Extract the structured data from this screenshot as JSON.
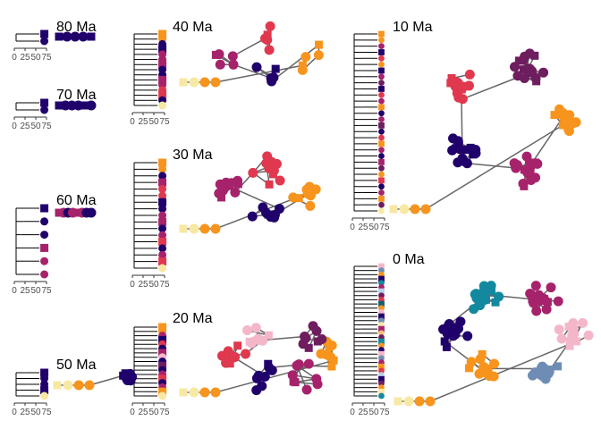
{
  "colors": {
    "dark_purple": "#20006b",
    "magenta": "#a6236b",
    "red": "#e0384e",
    "orange": "#f7941d",
    "light_orange": "#fbbf7a",
    "cream": "#f7e8a3",
    "plum": "#6e1d5f",
    "pink": "#f4b7c9",
    "steel": "#6f8db4",
    "light_blue": "#b9cfe8",
    "teal": "#13899f",
    "dark_teal": "#0f5f6e",
    "edge": "#666666",
    "tree": "#000000"
  },
  "chart_data": {
    "type": "network",
    "xtick_labels": [
      "0",
      "25",
      "50",
      "75"
    ],
    "panels": [
      {
        "title": "80 Ma",
        "tips": [
          "dark_purple",
          "dark_purple"
        ],
        "network_nodes": 5
      },
      {
        "title": "70 Ma",
        "tips": [
          "dark_purple",
          "dark_purple"
        ],
        "network_nodes": 6
      },
      {
        "title": "60 Ma",
        "tips": [
          "dark_purple",
          "dark_purple",
          "dark_purple",
          "magenta",
          "magenta",
          "magenta"
        ],
        "network_nodes": 8
      },
      {
        "title": "50 Ma",
        "tips": [
          "dark_purple",
          "dark_purple",
          "dark_purple",
          "dark_purple",
          "cream"
        ],
        "network_nodes": 16
      },
      {
        "title": "40 Ma",
        "tips": [
          "orange",
          "orange",
          "dark_purple",
          "dark_purple",
          "magenta",
          "magenta",
          "magenta",
          "dark_purple",
          "dark_purple",
          "magenta",
          "magenta",
          "red",
          "red",
          "dark_purple",
          "cream"
        ],
        "network_nodes": 27
      },
      {
        "title": "30 Ma",
        "tips": [
          "orange",
          "orange",
          "dark_purple",
          "magenta",
          "red",
          "red",
          "dark_purple",
          "dark_purple",
          "magenta",
          "magenta",
          "dark_purple",
          "magenta",
          "red",
          "dark_purple",
          "magenta",
          "red",
          "cream"
        ],
        "network_nodes": 46
      },
      {
        "title": "20 Ma",
        "tips": [
          "orange",
          "orange",
          "magenta",
          "dark_purple",
          "red",
          "dark_purple",
          "magenta",
          "pink",
          "dark_purple",
          "plum",
          "dark_purple",
          "magenta",
          "red",
          "dark_purple",
          "magenta",
          "orange",
          "cream"
        ],
        "network_nodes": 62
      },
      {
        "title": "10 Ma",
        "tips": [
          "orange",
          "orange",
          "magenta",
          "dark_purple",
          "red",
          "orange",
          "dark_purple",
          "magenta",
          "plum",
          "dark_purple",
          "red",
          "magenta",
          "orange",
          "dark_purple",
          "magenta",
          "plum",
          "dark_purple",
          "red",
          "orange",
          "magenta",
          "dark_purple",
          "magenta",
          "plum",
          "orange",
          "red",
          "dark_purple",
          "magenta",
          "orange",
          "plum",
          "cream"
        ],
        "network_nodes": 92
      },
      {
        "title": "0 Ma",
        "tips": [
          "pink",
          "steel",
          "orange",
          "dark_purple",
          "teal",
          "magenta",
          "light_blue",
          "plum",
          "red",
          "dark_teal",
          "orange",
          "pink",
          "dark_purple",
          "steel",
          "cream",
          "magenta",
          "light_orange",
          "plum",
          "teal",
          "orange",
          "dark_purple",
          "pink",
          "steel",
          "magenta",
          "orange",
          "red",
          "light_blue",
          "dark_purple",
          "plum",
          "orange",
          "cream",
          "teal"
        ],
        "network_nodes": 104
      }
    ]
  }
}
